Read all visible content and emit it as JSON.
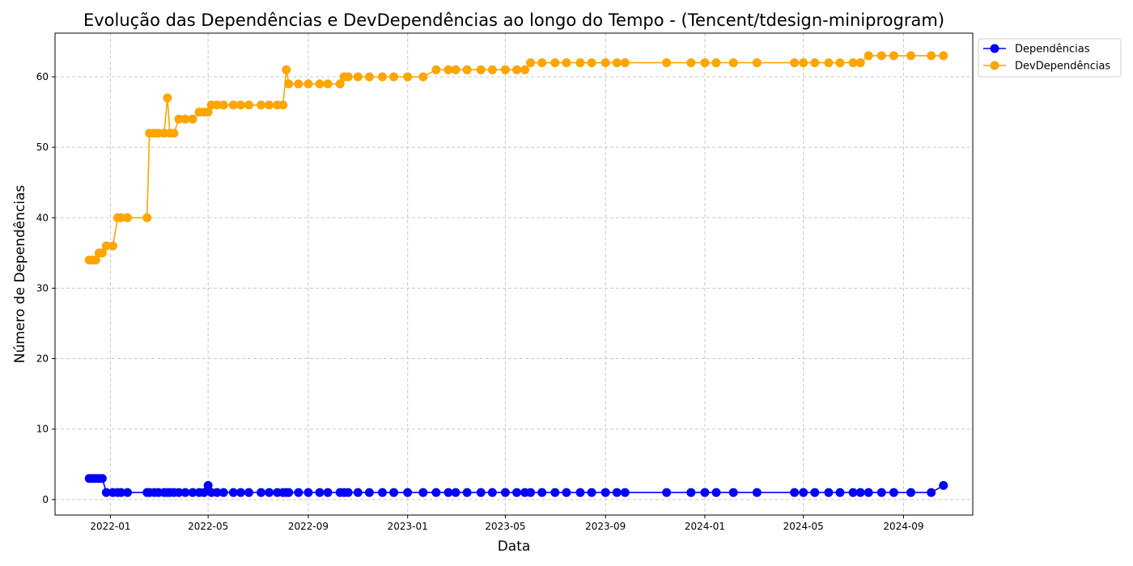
{
  "chart_data": {
    "type": "line",
    "title": "Evolução das Dependências e DevDependências ao longo do Tempo - (Tencent/tdesign-miniprogram)",
    "xlabel": "Data",
    "ylabel": "Número de Dependências",
    "x_ticks": [
      "2022-01",
      "2022-05",
      "2022-09",
      "2023-01",
      "2023-05",
      "2023-09",
      "2024-01",
      "2024-05",
      "2024-09"
    ],
    "y_ticks": [
      0,
      10,
      20,
      30,
      40,
      50,
      60
    ],
    "xlim": [
      "2021-10-25",
      "2024-11-25"
    ],
    "ylim": [
      -2.2,
      66.2
    ],
    "grid": true,
    "legend_position": "outside-top-right",
    "colors": {
      "Dependências": "#0000ff",
      "DevDependências": "#ffa500"
    },
    "x": [
      "2021-12-06",
      "2021-12-10",
      "2021-12-14",
      "2021-12-18",
      "2021-12-22",
      "2021-12-27",
      "2022-01-04",
      "2022-01-10",
      "2022-01-14",
      "2022-01-22",
      "2022-02-15",
      "2022-02-18",
      "2022-02-24",
      "2022-03-01",
      "2022-03-08",
      "2022-03-12",
      "2022-03-15",
      "2022-03-20",
      "2022-03-26",
      "2022-04-03",
      "2022-04-12",
      "2022-04-20",
      "2022-04-26",
      "2022-05-01",
      "2022-05-05",
      "2022-05-12",
      "2022-05-20",
      "2022-06-01",
      "2022-06-10",
      "2022-06-20",
      "2022-07-05",
      "2022-07-15",
      "2022-07-25",
      "2022-08-01",
      "2022-08-05",
      "2022-08-08",
      "2022-08-20",
      "2022-09-01",
      "2022-09-15",
      "2022-09-25",
      "2022-10-10",
      "2022-10-15",
      "2022-10-20",
      "2022-11-01",
      "2022-11-15",
      "2022-12-01",
      "2022-12-15",
      "2023-01-01",
      "2023-01-20",
      "2023-02-05",
      "2023-02-20",
      "2023-03-01",
      "2023-03-15",
      "2023-04-01",
      "2023-04-15",
      "2023-05-01",
      "2023-05-15",
      "2023-05-25",
      "2023-06-01",
      "2023-06-15",
      "2023-07-01",
      "2023-07-15",
      "2023-08-01",
      "2023-08-15",
      "2023-09-01",
      "2023-09-15",
      "2023-09-25",
      "2023-11-15",
      "2023-12-15",
      "2024-01-01",
      "2024-01-15",
      "2024-02-05",
      "2024-03-05",
      "2024-04-20",
      "2024-05-01",
      "2024-05-15",
      "2024-06-01",
      "2024-06-15",
      "2024-07-01",
      "2024-07-10",
      "2024-07-20",
      "2024-08-05",
      "2024-08-20",
      "2024-09-10",
      "2024-10-05",
      "2024-10-20"
    ],
    "series": [
      {
        "name": "Dependências",
        "values": [
          3,
          3,
          3,
          3,
          3,
          1,
          1,
          1,
          1,
          1,
          1,
          1,
          1,
          1,
          1,
          1,
          1,
          1,
          1,
          1,
          1,
          1,
          1,
          2,
          1,
          1,
          1,
          1,
          1,
          1,
          1,
          1,
          1,
          1,
          1,
          1,
          1,
          1,
          1,
          1,
          1,
          1,
          1,
          1,
          1,
          1,
          1,
          1,
          1,
          1,
          1,
          1,
          1,
          1,
          1,
          1,
          1,
          1,
          1,
          1,
          1,
          1,
          1,
          1,
          1,
          1,
          1,
          1,
          1,
          1,
          1,
          1,
          1,
          1,
          1,
          1,
          1,
          1,
          1,
          1,
          1,
          1,
          1,
          1,
          1,
          2
        ]
      },
      {
        "name": "DevDependências",
        "values": [
          34,
          34,
          34,
          35,
          35,
          36,
          36,
          40,
          40,
          40,
          40,
          52,
          52,
          52,
          52,
          57,
          52,
          52,
          54,
          54,
          54,
          55,
          55,
          55,
          56,
          56,
          56,
          56,
          56,
          56,
          56,
          56,
          56,
          56,
          61,
          59,
          59,
          59,
          59,
          59,
          59,
          60,
          60,
          60,
          60,
          60,
          60,
          60,
          60,
          61,
          61,
          61,
          61,
          61,
          61,
          61,
          61,
          61,
          62,
          62,
          62,
          62,
          62,
          62,
          62,
          62,
          62,
          62,
          62,
          62,
          62,
          62,
          62,
          62,
          62,
          62,
          62,
          62,
          62,
          62,
          63,
          63,
          63,
          63,
          63,
          63
        ]
      }
    ]
  }
}
